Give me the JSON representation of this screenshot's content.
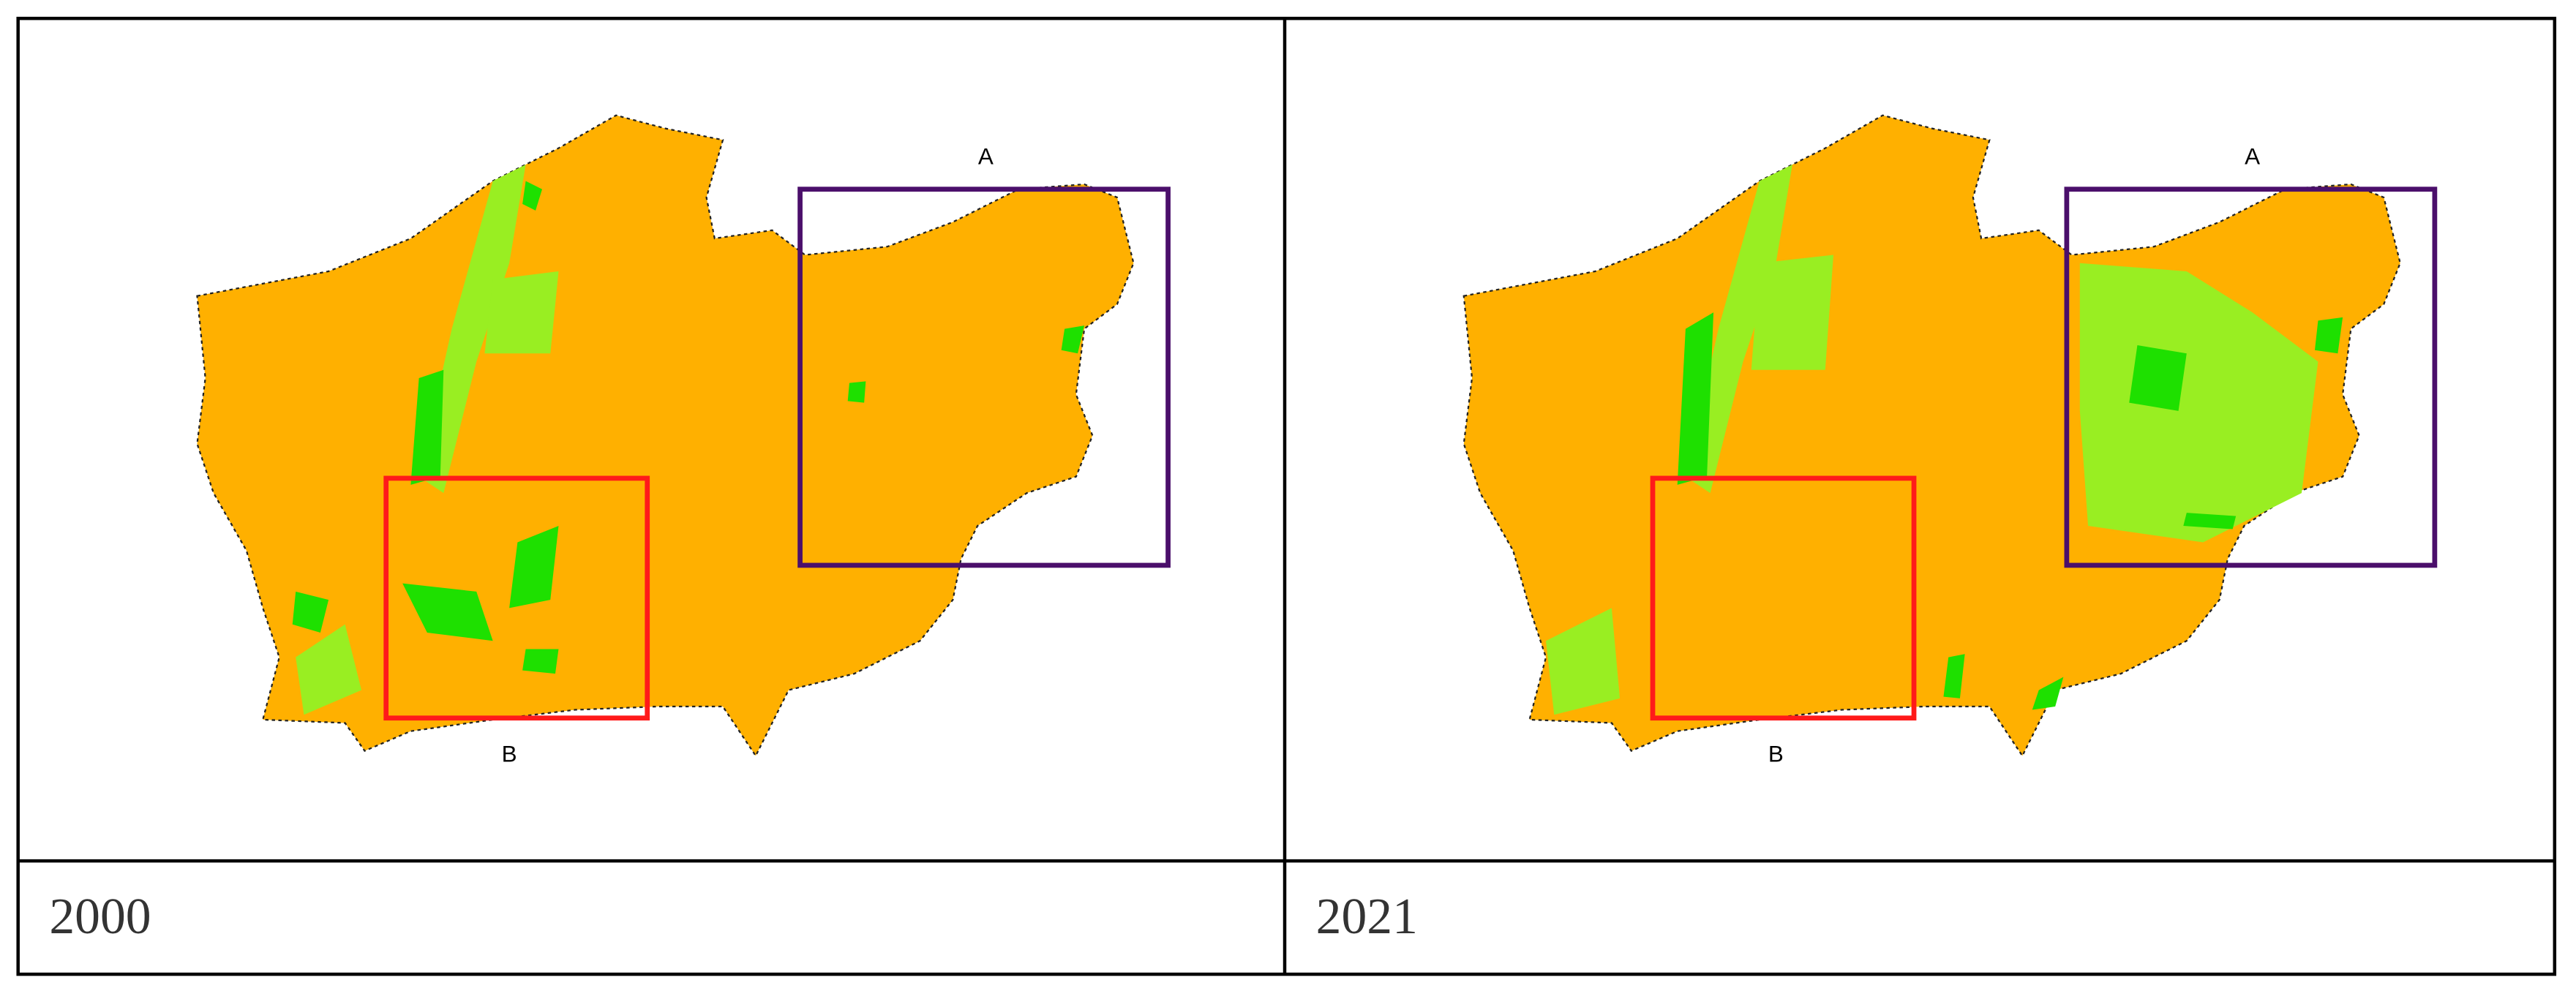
{
  "panels": [
    {
      "year": "2000",
      "label_a": "A",
      "label_b": "B"
    },
    {
      "year": "2021",
      "label_a": "A",
      "label_b": "B"
    }
  ]
}
